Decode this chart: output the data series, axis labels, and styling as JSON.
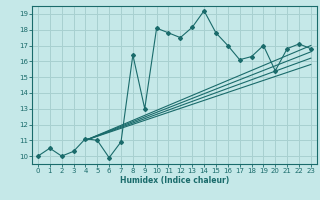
{
  "title": "",
  "xlabel": "Humidex (Indice chaleur)",
  "bg_color": "#c5e8e8",
  "line_color": "#1a6b6b",
  "grid_color": "#a8d0d0",
  "xlim": [
    -0.5,
    23.5
  ],
  "ylim": [
    9.5,
    19.5
  ],
  "xticks": [
    0,
    1,
    2,
    3,
    4,
    5,
    6,
    7,
    8,
    9,
    10,
    11,
    12,
    13,
    14,
    15,
    16,
    17,
    18,
    19,
    20,
    21,
    22,
    23
  ],
  "yticks": [
    10,
    11,
    12,
    13,
    14,
    15,
    16,
    17,
    18,
    19
  ],
  "main_line": {
    "x": [
      0,
      1,
      2,
      3,
      4,
      5,
      6,
      7,
      8,
      9,
      10,
      11,
      12,
      13,
      14,
      15,
      16,
      17,
      18,
      19,
      20,
      21,
      22,
      23
    ],
    "y": [
      10,
      10.5,
      10.0,
      10.3,
      11.1,
      11.0,
      9.9,
      10.9,
      16.4,
      13.0,
      18.1,
      17.8,
      17.5,
      18.15,
      19.2,
      17.8,
      17.0,
      16.1,
      16.3,
      17.0,
      15.4,
      16.8,
      17.1,
      16.8
    ]
  },
  "diag_lines": [
    {
      "x": [
        4,
        23
      ],
      "y": [
        11.0,
        17.0
      ]
    },
    {
      "x": [
        4,
        23
      ],
      "y": [
        11.0,
        16.6
      ]
    },
    {
      "x": [
        4,
        23
      ],
      "y": [
        11.0,
        16.2
      ]
    },
    {
      "x": [
        4,
        23
      ],
      "y": [
        11.0,
        15.8
      ]
    }
  ]
}
